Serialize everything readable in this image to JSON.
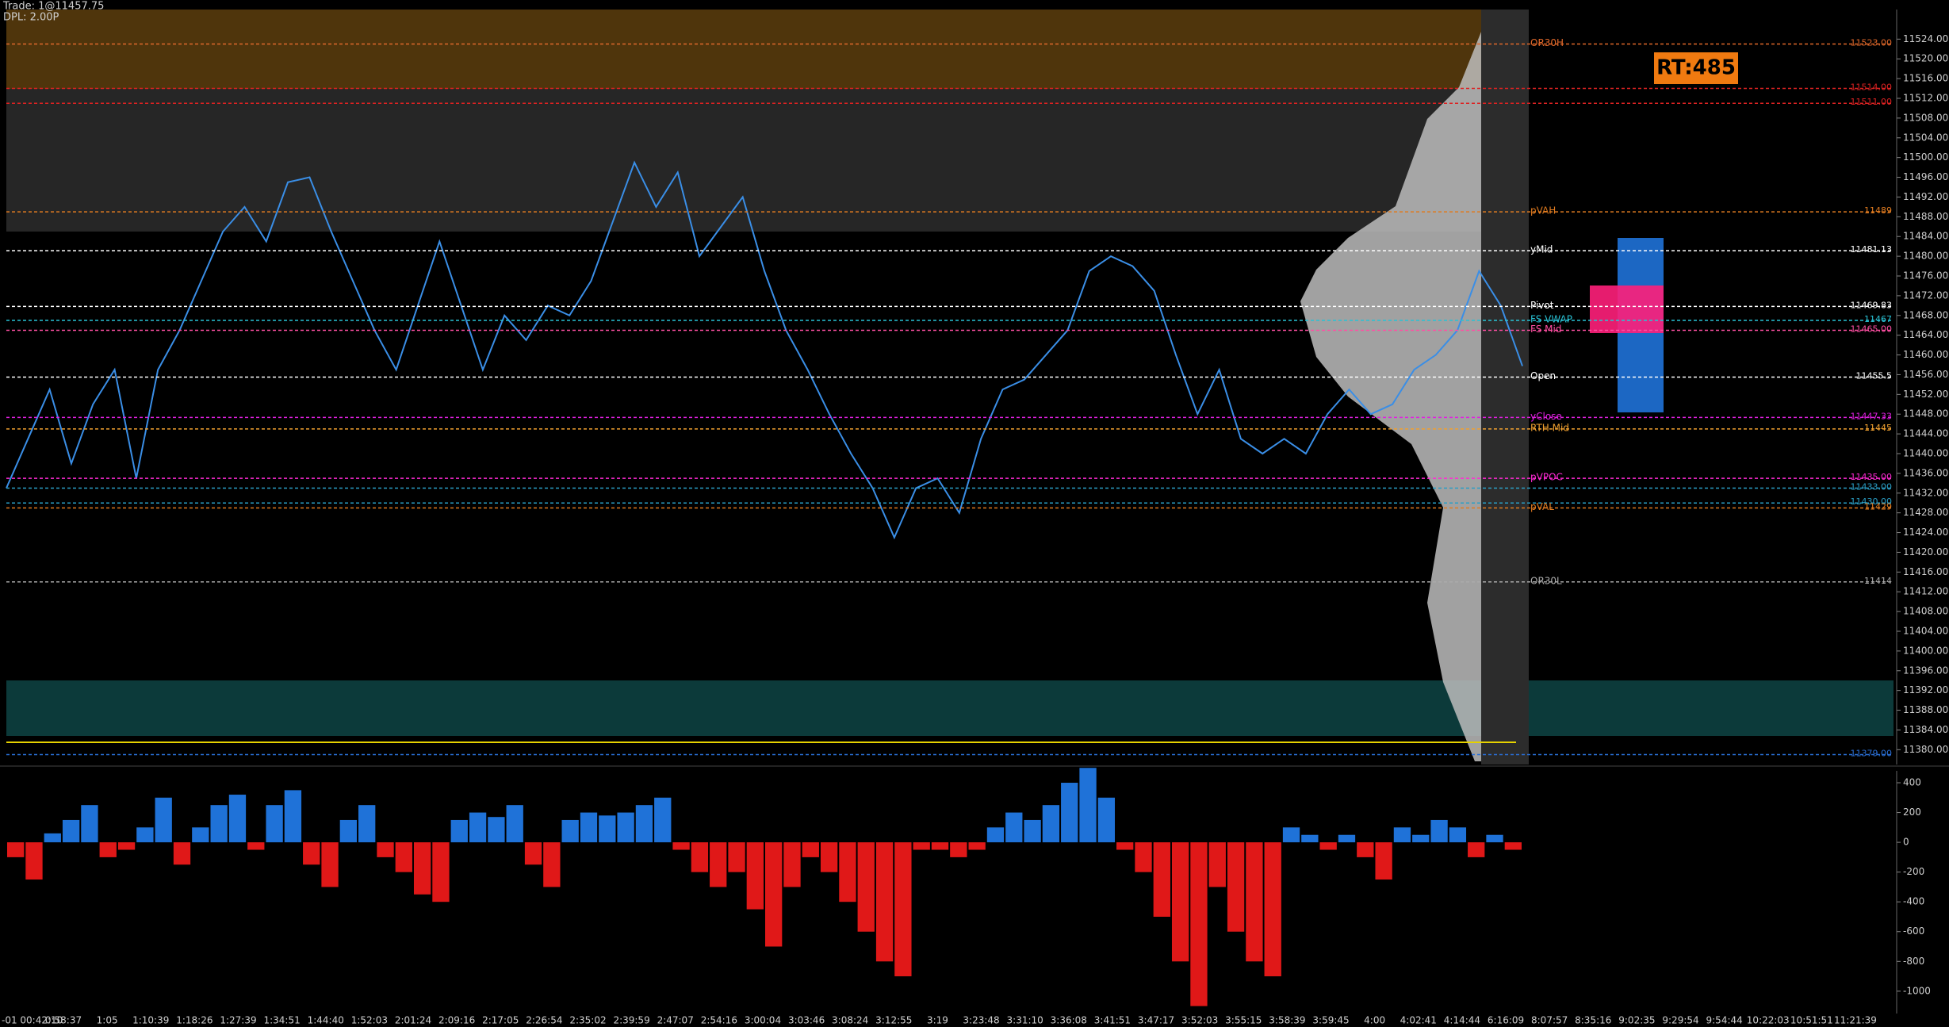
{
  "header": {
    "trade": "Trade: 1@11457.75",
    "dpl": "DPL: 2.00P",
    "rt": "RT:485",
    "session": "-01 00:42:10"
  },
  "time_labels": [
    "0:58:37",
    "1:05",
    "1:10:39",
    "1:18:26",
    "1:27:39",
    "1:34:51",
    "1:44:40",
    "1:52:03",
    "2:01:24",
    "2:09:16",
    "2:17:05",
    "2:26:54",
    "2:35:02",
    "2:39:59",
    "2:47:07",
    "2:54:16",
    "3:00:04",
    "3:03:46",
    "3:08:24",
    "3:12:55",
    "3:19",
    "3:23:48",
    "3:31:10",
    "3:36:08",
    "3:41:51",
    "3:47:17",
    "3:52:03",
    "3:55:15",
    "3:58:39",
    "3:59:45",
    "4:00",
    "4:02:41",
    "4:14:44",
    "6:16:09",
    "8:07:57",
    "8:35:16",
    "9:02:35",
    "9:29:54",
    "9:54:44",
    "10:22:03",
    "10:51:51",
    "11:21:39"
  ],
  "chart_data": [
    {
      "type": "line",
      "color": "#3a8ee6",
      "values": [
        11433,
        11443,
        11453,
        11438,
        11450,
        11457,
        11435,
        11457,
        11465,
        11475,
        11485,
        11490,
        11483,
        11495,
        11496,
        11485,
        11475,
        11465,
        11457,
        11470,
        11483,
        11470,
        11457,
        11468,
        11463,
        11470,
        11468,
        11475,
        11487,
        11499,
        11490,
        11497,
        11480,
        11486,
        11492,
        11477,
        11465,
        11457,
        11448,
        11440,
        11433,
        11423,
        11433,
        11435,
        11428,
        11443,
        11453,
        11455,
        11460,
        11465,
        11477,
        11480,
        11478,
        11473,
        11460,
        11448,
        11457,
        11443,
        11440,
        11443,
        11440,
        11448,
        11453,
        11448,
        11450,
        11457,
        11460,
        11465,
        11477,
        11470,
        11457.75
      ],
      "ylim": [
        11377,
        11530
      ],
      "yticks": [
        {
          "value": 11524,
          "label": "11524.00"
        },
        {
          "value": 11520,
          "label": "11520.00"
        },
        {
          "value": 11516,
          "label": "11516.00"
        },
        {
          "value": 11512,
          "label": "11512.00"
        },
        {
          "value": 11508,
          "label": "11508.00"
        },
        {
          "value": 11504,
          "label": "11504.00"
        },
        {
          "value": 11500,
          "label": "11500.00"
        },
        {
          "value": 11496,
          "label": "11496.00"
        },
        {
          "value": 11492,
          "label": "11492.00"
        },
        {
          "value": 11488,
          "label": "11488.00"
        },
        {
          "value": 11484,
          "label": "11484.00"
        },
        {
          "value": 11480,
          "label": "11480.00"
        },
        {
          "value": 11476,
          "label": "11476.00"
        },
        {
          "value": 11472,
          "label": "11472.00"
        },
        {
          "value": 11468,
          "label": "11468.00"
        },
        {
          "value": 11464,
          "label": "11464.00"
        },
        {
          "value": 11460,
          "label": "11460.00"
        },
        {
          "value": 11456,
          "label": "11456.00"
        },
        {
          "value": 11452,
          "label": "11452.00"
        },
        {
          "value": 11448,
          "label": "11448.00"
        },
        {
          "value": 11444,
          "label": "11444.00"
        },
        {
          "value": 11440,
          "label": "11440.00"
        },
        {
          "value": 11436,
          "label": "11436.00"
        },
        {
          "value": 11432,
          "label": "11432.00"
        },
        {
          "value": 11428,
          "label": "11428.00"
        },
        {
          "value": 11424,
          "label": "11424.00"
        },
        {
          "value": 11420,
          "label": "11420.00"
        },
        {
          "value": 11416,
          "label": "11416.00"
        },
        {
          "value": 11412,
          "label": "11412.00"
        },
        {
          "value": 11408,
          "label": "11408.00"
        },
        {
          "value": 11404,
          "label": "11404.00"
        },
        {
          "value": 11400,
          "label": "11400.00"
        },
        {
          "value": 11396,
          "label": "11396.00"
        },
        {
          "value": 11392,
          "label": "11392.00"
        },
        {
          "value": 11388,
          "label": "11388.00"
        },
        {
          "value": 11384,
          "label": "11384.00"
        },
        {
          "value": 11380,
          "label": "11380.00"
        }
      ],
      "levels": [
        {
          "name": "OR30H",
          "value": 11523,
          "value_label": "11523.00",
          "color": "#e0682a"
        },
        {
          "name": null,
          "value": 11514,
          "value_label": "11514.00",
          "color": "#d22"
        },
        {
          "name": null,
          "value": 11511,
          "value_label": "11511.00",
          "color": "#d22"
        },
        {
          "name": "pVAH",
          "value": 11489,
          "color": "#e07b20"
        },
        {
          "name": "yMid",
          "value": 11481.13,
          "color": "#ffffff"
        },
        {
          "name": "Pivot",
          "value": 11469.83,
          "color": "#ffffff"
        },
        {
          "name": "FS VWAP",
          "value": 11467,
          "color": "#29c3d6"
        },
        {
          "name": "FS Mid",
          "value": 11465,
          "value_label": "11465.00",
          "color": "#ff4fa3"
        },
        {
          "name": "Open",
          "value": 11455.5,
          "color": "#ffffff"
        },
        {
          "name": "yClose",
          "value": 11447.33,
          "color": "#e020e0"
        },
        {
          "name": "RTH Mid",
          "value": 11445,
          "color": "#f0a030"
        },
        {
          "name": "pVPOC",
          "value": 11435,
          "value_label": "11435.00",
          "color": "#ff2ad4"
        },
        {
          "name": null,
          "value": 11433,
          "value_label": "11433.00",
          "color": "#2a9fc6"
        },
        {
          "name": null,
          "value": 11430,
          "value_label": "11430.00",
          "color": "#2a9fc6"
        },
        {
          "name": "pVAL",
          "value": 11429,
          "color": "#e07b20"
        },
        {
          "name": "OR30L",
          "value": 11414,
          "color": "#aaaaaa"
        },
        {
          "name": null,
          "value": 11379,
          "value_label": "11379.00",
          "color": "#2a6fd6"
        }
      ]
    },
    {
      "type": "bar",
      "pos_color": "#1f72d8",
      "neg_color": "#e01818",
      "values": [
        -100,
        -250,
        60,
        150,
        250,
        -100,
        -50,
        100,
        300,
        -150,
        100,
        250,
        320,
        -50,
        250,
        350,
        -150,
        -300,
        150,
        250,
        -100,
        -200,
        -350,
        -400,
        150,
        200,
        170,
        250,
        -150,
        -300,
        150,
        200,
        180,
        200,
        250,
        300,
        -50,
        -200,
        -300,
        -200,
        -450,
        -700,
        -300,
        -100,
        -200,
        -400,
        -600,
        -800,
        -900,
        -50,
        -50,
        -100,
        -50,
        100,
        200,
        150,
        250,
        400,
        500,
        300,
        -50,
        -200,
        -500,
        -800,
        -1100,
        -300,
        -600,
        -800,
        -900,
        100,
        50,
        -50,
        50,
        -100,
        -250,
        100,
        50,
        150,
        100,
        -100,
        50,
        -50
      ],
      "ylim": [
        -1150,
        480
      ],
      "yticks": [
        400,
        200,
        0,
        -200,
        -400,
        -600,
        -800,
        -1000
      ]
    }
  ]
}
